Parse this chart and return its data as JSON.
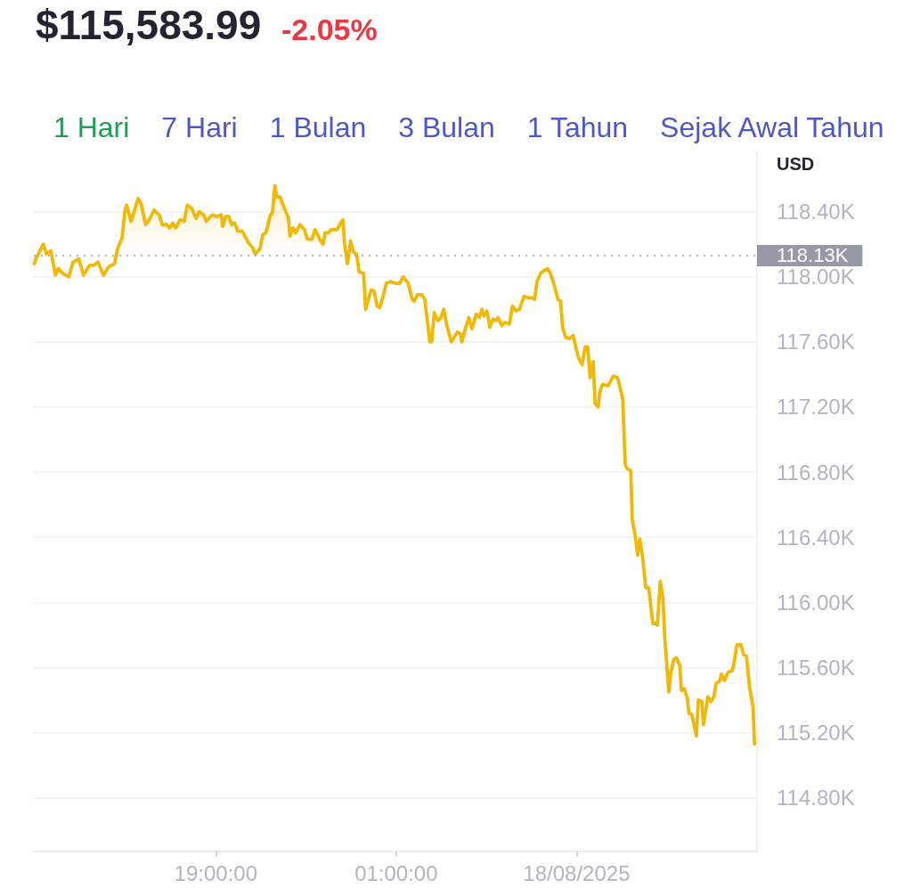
{
  "chart_data": {
    "type": "area",
    "title": "$115,583.99",
    "subtitle": "-2.05%",
    "ylabel": "USD",
    "annotations": [
      "1 Hari",
      "7 Hari",
      "1 Bulan",
      "3 Bulan",
      "1 Tahun",
      "Sejak Awal Tahun"
    ],
    "color": "#f2b807",
    "x": [
      "2025-08-17T12:58",
      "2025-08-17T13:01",
      "2025-08-17T13:16",
      "2025-08-17T13:22",
      "2025-08-17T13:31",
      "2025-08-17T13:40",
      "2025-08-17T13:46",
      "2025-08-17T13:55",
      "2025-08-17T14:07",
      "2025-08-17T14:15",
      "2025-08-17T14:21",
      "2025-08-17T14:27",
      "2025-08-17T14:36",
      "2025-08-17T14:48",
      "2025-08-17T14:56",
      "2025-08-17T15:05",
      "2025-08-17T15:16",
      "2025-08-17T15:26",
      "2025-08-17T15:38",
      "2025-08-17T15:44",
      "2025-08-17T15:53",
      "2025-08-17T15:59",
      "2025-08-17T16:02",
      "2025-08-17T16:11",
      "2025-08-17T16:25",
      "2025-08-17T16:31",
      "2025-08-17T16:40",
      "2025-08-17T16:49",
      "2025-08-17T16:57",
      "2025-08-17T17:07",
      "2025-08-17T17:13",
      "2025-08-17T17:22",
      "2025-08-17T17:28",
      "2025-08-17T17:34",
      "2025-08-17T17:40",
      "2025-08-17T17:49",
      "2025-08-17T17:57",
      "2025-08-17T18:03",
      "2025-08-17T18:12",
      "2025-08-17T18:21",
      "2025-08-17T18:27",
      "2025-08-17T18:36",
      "2025-08-17T18:41",
      "2025-08-17T18:53",
      "2025-08-17T19:02",
      "2025-08-17T19:11",
      "2025-08-17T19:14",
      "2025-08-17T19:20",
      "2025-08-17T19:26",
      "2025-08-17T19:32",
      "2025-08-17T19:38",
      "2025-08-17T19:44",
      "2025-08-17T19:53",
      "2025-08-17T20:05",
      "2025-08-17T20:13",
      "2025-08-17T20:19",
      "2025-08-17T20:28",
      "2025-08-17T20:34",
      "2025-08-17T20:40",
      "2025-08-17T20:49",
      "2025-08-17T20:53",
      "2025-08-17T20:58",
      "2025-08-17T21:02",
      "2025-08-17T21:08",
      "2025-08-17T21:16",
      "2025-08-17T21:25",
      "2025-08-17T21:28",
      "2025-08-17T21:34",
      "2025-08-17T21:39",
      "2025-08-17T21:48",
      "2025-08-17T21:57",
      "2025-08-17T22:03",
      "2025-08-17T22:12",
      "2025-08-17T22:18",
      "2025-08-17T22:26",
      "2025-08-17T22:34",
      "2025-08-17T22:38",
      "2025-08-17T22:44",
      "2025-08-17T22:50",
      "2025-08-17T23:02",
      "2025-08-17T23:11",
      "2025-08-17T23:14",
      "2025-08-17T23:17",
      "2025-08-17T23:23",
      "2025-08-17T23:29",
      "2025-08-17T23:35",
      "2025-08-17T23:41",
      "2025-08-17T23:46",
      "2025-08-17T23:55",
      "2025-08-17T23:59",
      "2025-08-18T00:10",
      "2025-08-18T00:16",
      "2025-08-18T00:22",
      "2025-08-18T00:27",
      "2025-08-18T00:34",
      "2025-08-18T00:40",
      "2025-08-18T00:49",
      "2025-08-18T00:58",
      "2025-08-18T01:07",
      "2025-08-18T01:14",
      "2025-08-18T01:24",
      "2025-08-18T01:32",
      "2025-08-18T01:36",
      "2025-08-18T01:42",
      "2025-08-18T01:51",
      "2025-08-18T01:57",
      "2025-08-18T02:03",
      "2025-08-18T02:07",
      "2025-08-18T02:11",
      "2025-08-18T02:16",
      "2025-08-18T02:23",
      "2025-08-18T02:29",
      "2025-08-18T02:35",
      "2025-08-18T02:41",
      "2025-08-18T02:50",
      "2025-08-18T03:02",
      "2025-08-18T03:08",
      "2025-08-18T03:11",
      "2025-08-18T03:17",
      "2025-08-18T03:25",
      "2025-08-18T03:31",
      "2025-08-18T03:36",
      "2025-08-18T03:40",
      "2025-08-18T03:46",
      "2025-08-18T03:51",
      "2025-08-18T03:55",
      "2025-08-18T04:01",
      "2025-08-18T04:07",
      "2025-08-18T04:13",
      "2025-08-18T04:19",
      "2025-08-18T04:23",
      "2025-08-18T04:31",
      "2025-08-18T04:37",
      "2025-08-18T04:46",
      "2025-08-18T04:52",
      "2025-08-18T04:59",
      "2025-08-18T05:06",
      "2025-08-18T05:15",
      "2025-08-18T05:24",
      "2025-08-18T05:33",
      "2025-08-18T05:36",
      "2025-08-18T05:41",
      "2025-08-18T05:48",
      "2025-08-18T05:56",
      "2025-08-18T06:02",
      "2025-08-18T06:08",
      "2025-08-18T06:14",
      "2025-08-18T06:23",
      "2025-08-18T06:28",
      "2025-08-18T06:32",
      "2025-08-18T06:38",
      "2025-08-18T06:46",
      "2025-08-18T06:53",
      "2025-08-18T06:59",
      "2025-08-18T07:04",
      "2025-08-18T07:11",
      "2025-08-18T07:17",
      "2025-08-18T07:22",
      "2025-08-18T07:27",
      "2025-08-18T07:33",
      "2025-08-18T07:37",
      "2025-08-18T07:43",
      "2025-08-18T07:46",
      "2025-08-18T07:52",
      "2025-08-18T08:03",
      "2025-08-18T08:13",
      "2025-08-18T08:22",
      "2025-08-18T08:32",
      "2025-08-18T08:37",
      "2025-08-18T08:41",
      "2025-08-18T08:48",
      "2025-08-18T08:51",
      "2025-08-18T08:57",
      "2025-08-18T09:02",
      "2025-08-18T09:06",
      "2025-08-18T09:12",
      "2025-08-18T09:18",
      "2025-08-18T09:24",
      "2025-08-18T09:32",
      "2025-08-18T09:38",
      "2025-08-18T09:41",
      "2025-08-18T09:47",
      "2025-08-18T09:52",
      "2025-08-18T09:56",
      "2025-08-18T10:04",
      "2025-08-18T10:08",
      "2025-08-18T10:14",
      "2025-08-18T10:19",
      "2025-08-18T10:26",
      "2025-08-18T10:29",
      "2025-08-18T10:35",
      "2025-08-18T10:41",
      "2025-08-18T10:44",
      "2025-08-18T10:50",
      "2025-08-18T10:59",
      "2025-08-18T11:03",
      "2025-08-18T11:10",
      "2025-08-18T11:13",
      "2025-08-18T11:22",
      "2025-08-18T11:28",
      "2025-08-18T11:34",
      "2025-08-18T11:38",
      "2025-08-18T11:46",
      "2025-08-18T11:49",
      "2025-08-18T11:55",
      "2025-08-18T12:02",
      "2025-08-18T12:10",
      "2025-08-18T12:13",
      "2025-08-18T12:20",
      "2025-08-18T12:28",
      "2025-08-18T12:33",
      "2025-08-18T12:39",
      "2025-08-18T12:45",
      "2025-08-18T12:52",
      "2025-08-18T12:55"
    ],
    "values": [
      118080,
      118110,
      118200,
      118140,
      118160,
      118010,
      118050,
      118020,
      118000,
      118090,
      118100,
      118110,
      118010,
      118070,
      118070,
      118090,
      118010,
      118060,
      118080,
      118170,
      118240,
      118410,
      118440,
      118340,
      118480,
      118450,
      118320,
      118360,
      118410,
      118380,
      118320,
      118320,
      118300,
      118330,
      118300,
      118350,
      118340,
      118440,
      118420,
      118360,
      118400,
      118380,
      118340,
      118380,
      118370,
      118380,
      118310,
      118370,
      118370,
      118320,
      118330,
      118280,
      118280,
      118210,
      118180,
      118140,
      118170,
      118260,
      118270,
      118380,
      118390,
      118560,
      118490,
      118490,
      118430,
      118360,
      118250,
      118300,
      118270,
      118320,
      118290,
      118230,
      118230,
      118290,
      118240,
      118200,
      118270,
      118270,
      118290,
      118290,
      118340,
      118350,
      118200,
      118080,
      118220,
      118150,
      118140,
      118030,
      118020,
      117800,
      117920,
      117910,
      117820,
      117810,
      117880,
      117960,
      117970,
      117960,
      117960,
      118000,
      117960,
      117860,
      117850,
      117890,
      117890,
      117860,
      117710,
      117600,
      117600,
      117780,
      117730,
      117750,
      117800,
      117700,
      117600,
      117660,
      117650,
      117600,
      117670,
      117750,
      117680,
      117730,
      117770,
      117750,
      117800,
      117760,
      117790,
      117690,
      117740,
      117730,
      117750,
      117700,
      117720,
      117710,
      117820,
      117790,
      117800,
      117880,
      117870,
      117870,
      117860,
      117970,
      118020,
      118040,
      118050,
      118020,
      117960,
      117860,
      117850,
      117690,
      117630,
      117620,
      117640,
      117560,
      117500,
      117460,
      117570,
      117570,
      117380,
      117480,
      117220,
      117200,
      117290,
      117340,
      117330,
      117390,
      117380,
      117250,
      116850,
      116820,
      116810,
      116510,
      116410,
      116290,
      116390,
      116270,
      116090,
      116090,
      115870,
      115870,
      115860,
      116130,
      116030,
      115780,
      115450,
      115570,
      115650,
      115660,
      115610,
      115460,
      115470,
      115410,
      115320,
      115310,
      115180,
      115400,
      115390,
      115250,
      115420,
      115390,
      115420,
      115500,
      115520,
      115560,
      115520,
      115570,
      115580,
      115610,
      115740,
      115740,
      115680,
      115670,
      115480,
      115360,
      115130
    ],
    "xlim": [
      "2025-08-17T12:57",
      "2025-08-18T13:00"
    ],
    "xticks": [
      {
        "value": "2025-08-17T19:00",
        "label": "19:00:00"
      },
      {
        "value": "2025-08-18T01:00",
        "label": "01:00:00"
      },
      {
        "value": "2025-08-18T07:00",
        "label": "18/08/2025"
      }
    ],
    "ylim": [
      114470,
      118770
    ],
    "yticks": [
      {
        "value": 114800,
        "label": "114.80K"
      },
      {
        "value": 115200,
        "label": "115.20K"
      },
      {
        "value": 115600,
        "label": "115.60K"
      },
      {
        "value": 116000,
        "label": "116.00K"
      },
      {
        "value": 116400,
        "label": "116.40K"
      },
      {
        "value": 116800,
        "label": "116.80K"
      },
      {
        "value": 117200,
        "label": "117.20K"
      },
      {
        "value": 117600,
        "label": "117.60K"
      },
      {
        "value": 118000,
        "label": "118.00K"
      },
      {
        "value": 118400,
        "label": "118.40K"
      }
    ],
    "ref_lines": [
      {
        "axis": "y",
        "value": 118130,
        "label": "118.13K",
        "color": "#959aa6",
        "line_style": "dotted"
      }
    ],
    "grid": "y"
  }
}
